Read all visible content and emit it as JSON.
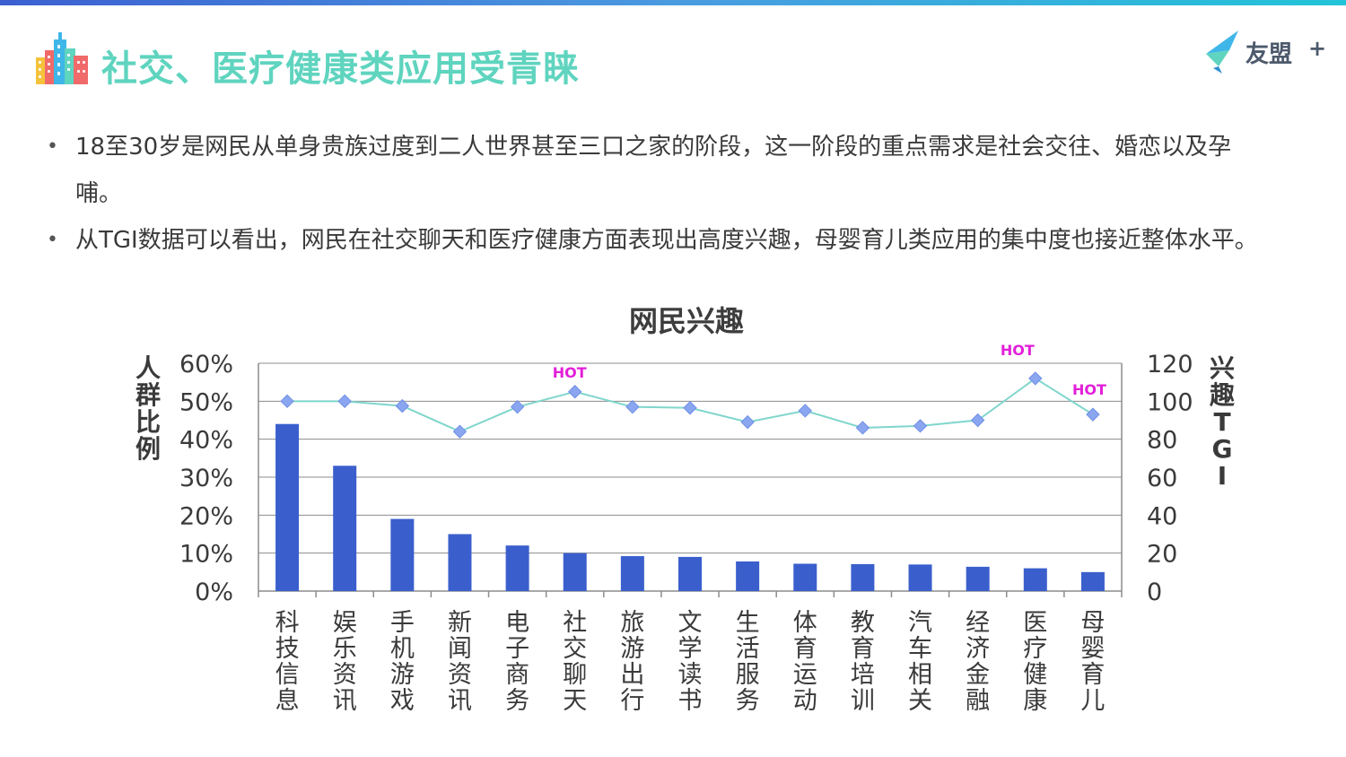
{
  "header": {
    "title": "社交、医疗健康类应用受青睐",
    "brand": "友盟",
    "brand_plus": "+"
  },
  "bullets": [
    "18至30岁是网民从单身贵族过度到二人世界甚至三口之家的阶段，这一阶段的重点需求是社会交往、婚恋以及孕哺。",
    "从TGI数据可以看出，网民在社交聊天和医疗健康方面表现出高度兴趣，母婴育儿类应用的集中度也接近整体水平。"
  ],
  "colors": {
    "accent": "#5fd4bf",
    "bar": "#3a5fcd",
    "line": "#7fd6cc",
    "marker": "#8aa6f0",
    "hot": "#e21fd9"
  },
  "chart_data": {
    "type": "bar",
    "title": "网民兴趣",
    "categories": [
      "科技信息",
      "娱乐资讯",
      "手机游戏",
      "新闻资讯",
      "电子商务",
      "社交聊天",
      "旅游出行",
      "文学读书",
      "生活服务",
      "体育运动",
      "教育培训",
      "汽车相关",
      "经济金融",
      "医疗健康",
      "母婴育儿"
    ],
    "series": [
      {
        "name": "人群比例",
        "type": "bar",
        "axis": "left",
        "values": [
          44,
          33,
          19,
          15,
          12,
          10,
          9.2,
          9,
          7.8,
          7.2,
          7.1,
          7,
          6.4,
          6,
          5
        ]
      },
      {
        "name": "兴趣TGI",
        "type": "line",
        "axis": "right",
        "values": [
          100,
          100,
          97.5,
          84,
          97,
          105,
          97,
          96.5,
          89,
          95,
          86,
          87,
          90,
          112,
          93
        ]
      }
    ],
    "ylabel": "人群比例",
    "y2label": "兴趣TGI",
    "ylim": [
      0,
      60
    ],
    "y2lim": [
      0,
      120
    ],
    "yticks": [
      "0%",
      "10%",
      "20%",
      "30%",
      "40%",
      "50%",
      "60%"
    ],
    "y2ticks": [
      "0",
      "20",
      "40",
      "60",
      "80",
      "100",
      "120"
    ],
    "grid": true,
    "annotations": [
      {
        "text": "HOT",
        "category": "社交聊天"
      },
      {
        "text": "HOT",
        "category": "医疗健康"
      },
      {
        "text": "HOT",
        "category": "母婴育儿"
      }
    ]
  }
}
